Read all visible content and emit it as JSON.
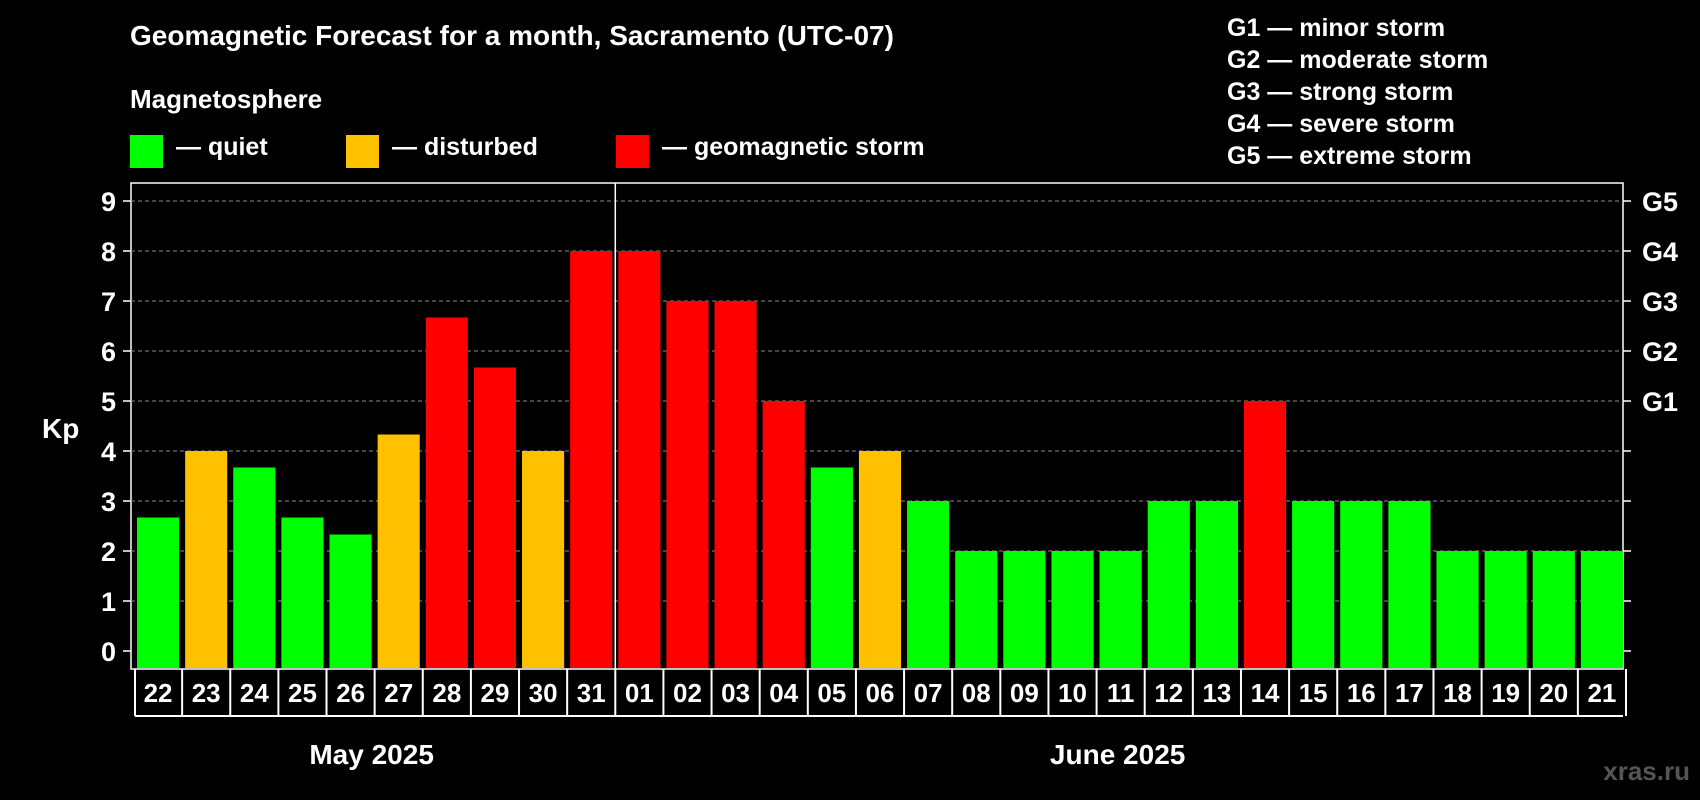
{
  "title": "Geomagnetic Forecast for a month, Sacramento (UTC-07)",
  "legend": {
    "heading": "Magnetosphere",
    "items": [
      {
        "label": "— quiet",
        "color": "#00ff00"
      },
      {
        "label": "— disturbed",
        "color": "#ffc000"
      },
      {
        "label": "— geomagnetic storm",
        "color": "#ff0000"
      }
    ]
  },
  "g_scale": [
    "G1 — minor storm",
    "G2 — moderate storm",
    "G3 — strong storm",
    "G4 — severe storm",
    "G5 — extreme storm"
  ],
  "watermark": "xras.ru",
  "chart_data": {
    "type": "bar",
    "ylabel": "Kp",
    "ylim": [
      0,
      9
    ],
    "yticks": [
      "0",
      "1",
      "2",
      "3",
      "4",
      "5",
      "6",
      "7",
      "8",
      "9"
    ],
    "right_axis_labels": [
      {
        "kp": 5,
        "label": "G1"
      },
      {
        "kp": 6,
        "label": "G2"
      },
      {
        "kp": 7,
        "label": "G3"
      },
      {
        "kp": 8,
        "label": "G4"
      },
      {
        "kp": 9,
        "label": "G5"
      }
    ],
    "grid": true,
    "months": [
      {
        "label": "May 2025",
        "start_index": 0,
        "end_index": 9
      },
      {
        "label": "June 2025",
        "start_index": 10,
        "end_index": 30
      }
    ],
    "categories": [
      "22",
      "23",
      "24",
      "25",
      "26",
      "27",
      "28",
      "29",
      "30",
      "31",
      "01",
      "02",
      "03",
      "04",
      "05",
      "06",
      "07",
      "08",
      "09",
      "10",
      "11",
      "12",
      "13",
      "14",
      "15",
      "16",
      "17",
      "18",
      "19",
      "20",
      "21"
    ],
    "values": [
      2.67,
      4,
      3.67,
      2.67,
      2.33,
      4.33,
      6.67,
      5.67,
      4,
      8,
      8,
      7,
      7,
      5,
      3.67,
      4,
      3,
      2,
      2,
      2,
      2,
      3,
      3,
      5,
      3,
      3,
      3,
      2,
      2,
      2,
      2
    ],
    "status": [
      "quiet",
      "disturbed",
      "quiet",
      "quiet",
      "quiet",
      "disturbed",
      "storm",
      "storm",
      "disturbed",
      "storm",
      "storm",
      "storm",
      "storm",
      "storm",
      "quiet",
      "disturbed",
      "quiet",
      "quiet",
      "quiet",
      "quiet",
      "quiet",
      "quiet",
      "quiet",
      "storm",
      "quiet",
      "quiet",
      "quiet",
      "quiet",
      "quiet",
      "quiet",
      "quiet"
    ],
    "status_colors": {
      "quiet": "#00ff00",
      "disturbed": "#ffc000",
      "storm": "#ff0000"
    }
  }
}
